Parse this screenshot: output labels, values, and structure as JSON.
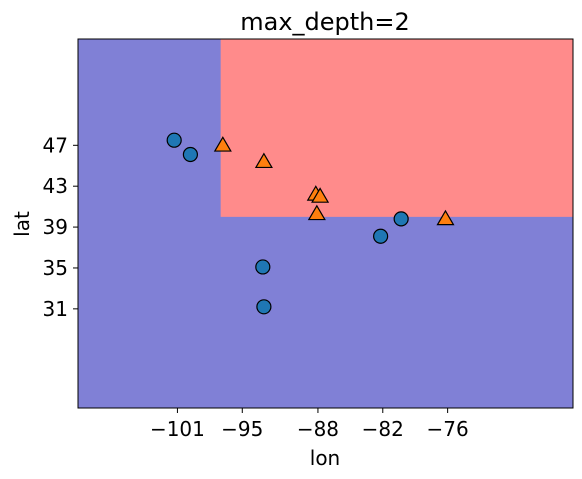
{
  "chart_data": {
    "type": "scatter",
    "title": "max_depth=2",
    "xlabel": "lon",
    "ylabel": "lat",
    "xlim": [
      -110.2,
      -64.4
    ],
    "ylim": [
      21.3,
      57.4
    ],
    "xticks": [
      -101,
      -95,
      -88,
      -82,
      -76
    ],
    "xtick_labels": [
      "−101",
      "−95",
      "−88",
      "−82",
      "−76"
    ],
    "yticks": [
      31,
      35,
      39,
      43,
      47
    ],
    "yticklabels": [
      "31",
      "35",
      "39",
      "43",
      "47"
    ],
    "regions": [
      {
        "color": "#8080d6",
        "x": [
          -110.2,
          -64.4
        ],
        "y": [
          21.3,
          57.4
        ]
      },
      {
        "color": "#ff8b8b",
        "x": [
          -97.0,
          -64.4
        ],
        "y": [
          40.0,
          57.4
        ]
      }
    ],
    "series": [
      {
        "marker": "circle",
        "color": "#1f77b4",
        "points": [
          [
            -101.3,
            47.5
          ],
          [
            -99.8,
            46.1
          ],
          [
            -93.1,
            35.1
          ],
          [
            -93.0,
            31.2
          ],
          [
            -82.2,
            38.1
          ],
          [
            -80.3,
            39.8
          ]
        ]
      },
      {
        "marker": "triangle",
        "color": "#ff7f0e",
        "points": [
          [
            -96.8,
            47.0
          ],
          [
            -93.0,
            45.4
          ],
          [
            -88.2,
            42.2
          ],
          [
            -87.8,
            42.0
          ],
          [
            -88.1,
            40.3
          ],
          [
            -76.2,
            39.8
          ]
        ]
      }
    ]
  }
}
